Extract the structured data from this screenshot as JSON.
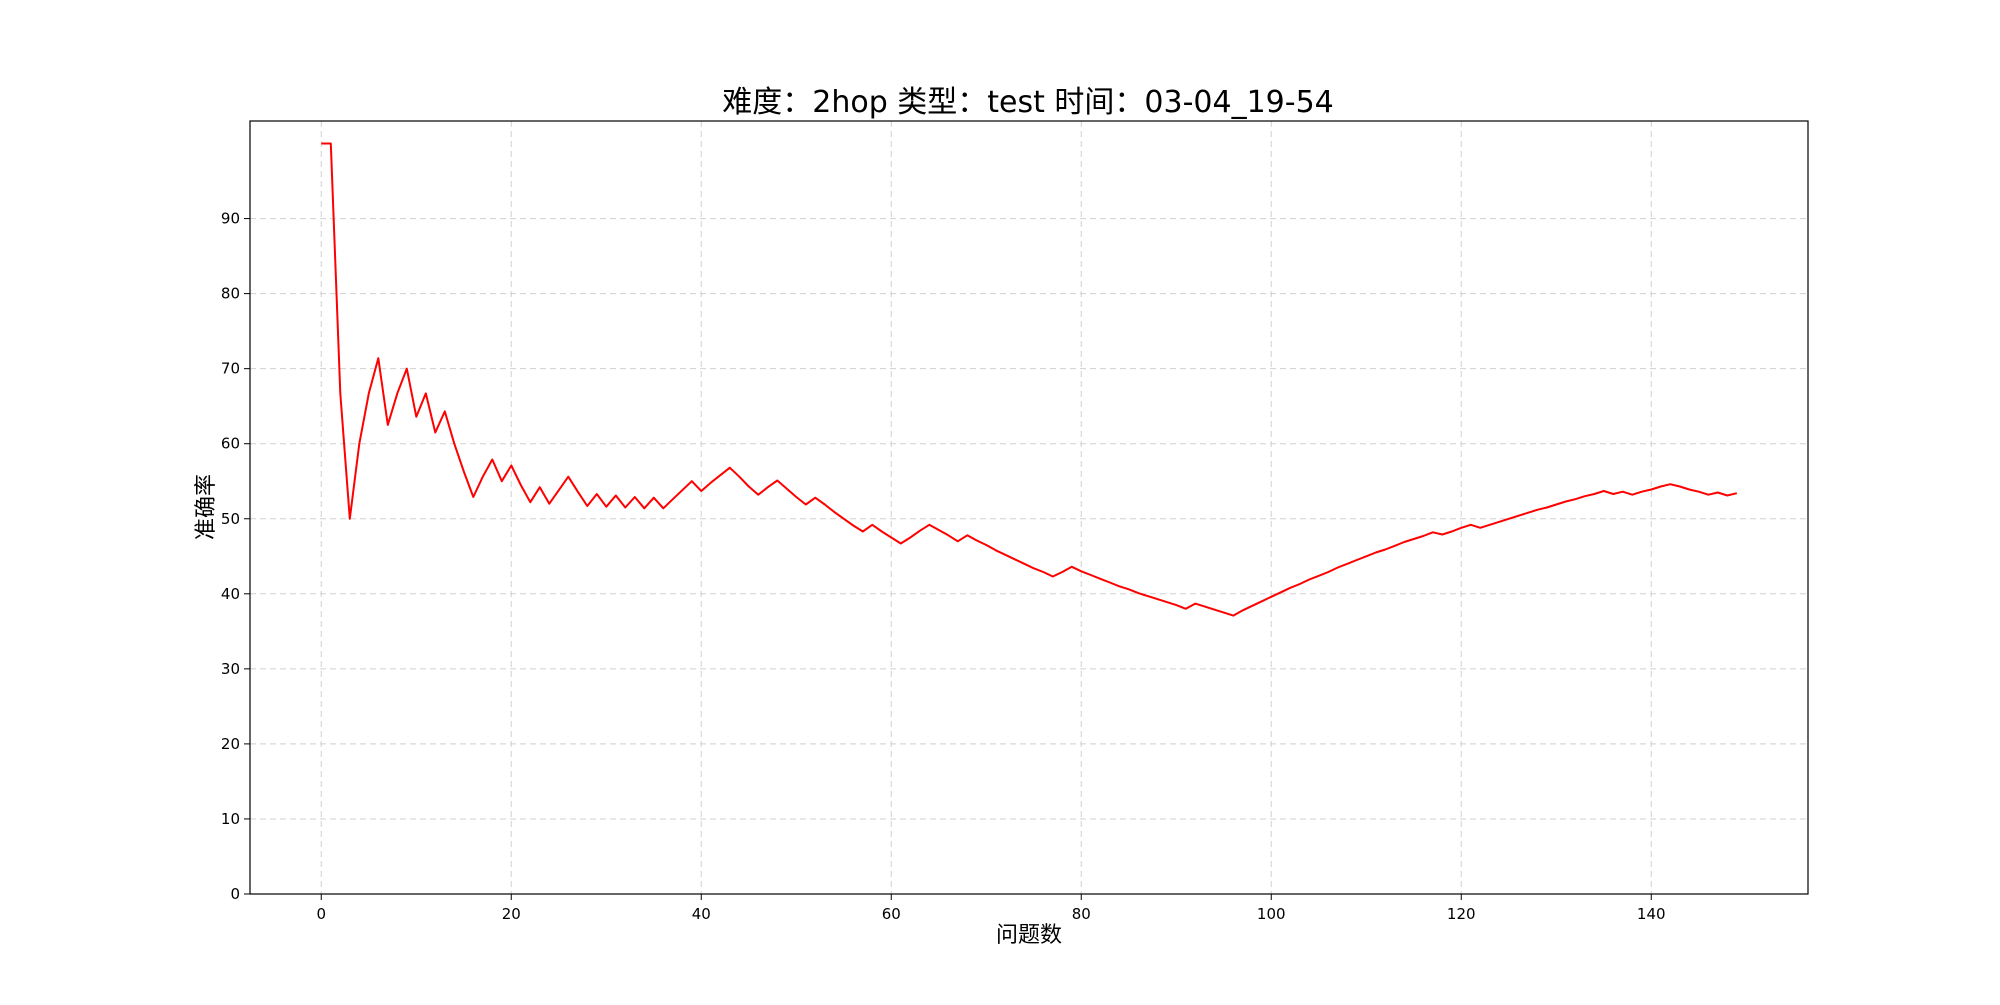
{
  "chart_data": {
    "type": "line",
    "title": "难度：2hop 类型：test 时间：03-04_19-54",
    "xlabel": "问题数",
    "ylabel": "准确率",
    "xlim": [
      -7.5,
      156.5
    ],
    "ylim": [
      0,
      103
    ],
    "x_ticks": [
      0,
      20,
      40,
      60,
      80,
      100,
      120,
      140
    ],
    "y_ticks": [
      0,
      10,
      20,
      30,
      40,
      50,
      60,
      70,
      80,
      90
    ],
    "grid": true,
    "legend": "none",
    "series": [
      {
        "color": "#ff0000",
        "x": [
          0,
          1,
          2,
          3,
          4,
          5,
          6,
          7,
          8,
          9,
          10,
          11,
          12,
          13,
          14,
          15,
          16,
          17,
          18,
          19,
          20,
          21,
          22,
          23,
          24,
          25,
          26,
          27,
          28,
          29,
          30,
          31,
          32,
          33,
          34,
          35,
          36,
          37,
          38,
          39,
          40,
          41,
          42,
          43,
          44,
          45,
          46,
          47,
          48,
          49,
          50,
          51,
          52,
          53,
          54,
          55,
          56,
          57,
          58,
          59,
          60,
          61,
          62,
          63,
          64,
          65,
          66,
          67,
          68,
          69,
          70,
          71,
          72,
          73,
          74,
          75,
          76,
          77,
          78,
          79,
          80,
          81,
          82,
          83,
          84,
          85,
          86,
          87,
          88,
          89,
          90,
          91,
          92,
          93,
          94,
          95,
          96,
          97,
          98,
          99,
          100,
          101,
          102,
          103,
          104,
          105,
          106,
          107,
          108,
          109,
          110,
          111,
          112,
          113,
          114,
          115,
          116,
          117,
          118,
          119,
          120,
          121,
          122,
          123,
          124,
          125,
          126,
          127,
          128,
          129,
          130,
          131,
          132,
          133,
          134,
          135,
          136,
          137,
          138,
          139,
          140,
          141,
          142,
          143,
          144,
          145,
          146,
          147,
          148,
          149
        ],
        "values": [
          100,
          100,
          66.7,
          50,
          60,
          66.7,
          71.4,
          62.5,
          66.7,
          70,
          63.6,
          66.7,
          61.5,
          64.3,
          60,
          56.3,
          52.9,
          55.6,
          57.9,
          55,
          57.1,
          54.5,
          52.2,
          54.2,
          52,
          53.8,
          55.6,
          53.6,
          51.7,
          53.3,
          51.6,
          53.1,
          51.5,
          52.9,
          51.4,
          52.8,
          51.4,
          52.6,
          53.8,
          55,
          53.7,
          54.8,
          55.8,
          56.8,
          55.6,
          54.3,
          53.2,
          54.2,
          55.1,
          54,
          52.9,
          51.9,
          52.8,
          51.9,
          50.9,
          50,
          49.1,
          48.3,
          49.2,
          48.3,
          47.5,
          46.7,
          47.5,
          48.4,
          49.2,
          48.5,
          47.8,
          47,
          47.8,
          47.1,
          46.5,
          45.8,
          45.2,
          44.6,
          44,
          43.4,
          42.9,
          42.3,
          42.9,
          43.6,
          43,
          42.5,
          42,
          41.5,
          41,
          40.6,
          40.1,
          39.7,
          39.3,
          38.9,
          38.5,
          38,
          38.7,
          38.3,
          37.9,
          37.5,
          37.1,
          37.8,
          38.4,
          39,
          39.6,
          40.2,
          40.8,
          41.3,
          41.9,
          42.4,
          42.9,
          43.5,
          44,
          44.5,
          45,
          45.5,
          45.9,
          46.4,
          46.9,
          47.3,
          47.7,
          48.2,
          47.9,
          48.3,
          48.8,
          49.2,
          48.8,
          49.2,
          49.6,
          50,
          50.4,
          50.8,
          51.2,
          51.5,
          51.9,
          52.3,
          52.6,
          53,
          53.3,
          53.7,
          53.3,
          53.6,
          53.2,
          53.6,
          53.9,
          54.3,
          54.6,
          54.3,
          53.9,
          53.6,
          53.2,
          53.5,
          53.1,
          53.4
        ]
      }
    ]
  }
}
